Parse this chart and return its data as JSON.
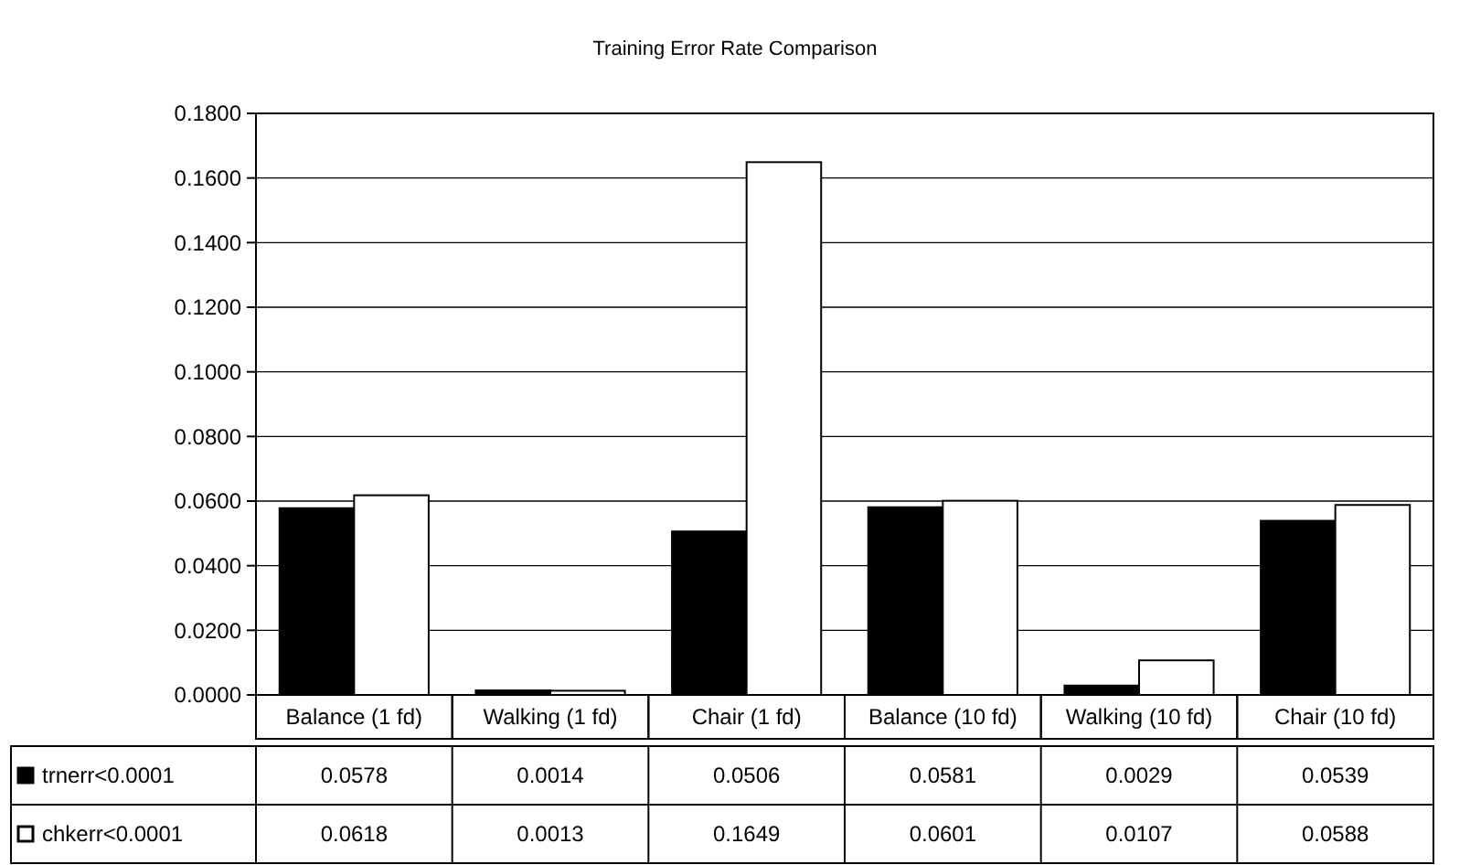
{
  "chart_data": {
    "type": "bar",
    "title": "Training Error Rate Comparison",
    "categories": [
      "Balance (1 fd)",
      "Walking (1 fd)",
      "Chair (1 fd)",
      "Balance (10 fd)",
      "Walking (10 fd)",
      "Chair (10 fd)"
    ],
    "series": [
      {
        "name": "trnerr<0.0001",
        "color": "#000000",
        "values": [
          0.0578,
          0.0014,
          0.0506,
          0.0581,
          0.0029,
          0.0539
        ]
      },
      {
        "name": "chkerr<0.0001",
        "color": "#ffffff",
        "values": [
          0.0618,
          0.0013,
          0.1649,
          0.0601,
          0.0107,
          0.0588
        ]
      }
    ],
    "ylim": [
      0,
      0.18
    ],
    "yticks": [
      {
        "value": 0,
        "label": "0.0000"
      },
      {
        "value": 0.02,
        "label": "0.0200"
      },
      {
        "value": 0.04,
        "label": "0.0400"
      },
      {
        "value": 0.06,
        "label": "0.0600"
      },
      {
        "value": 0.08,
        "label": "0.0800"
      },
      {
        "value": 0.1,
        "label": "0.1000"
      },
      {
        "value": 0.12,
        "label": "0.1200"
      },
      {
        "value": 0.14,
        "label": "0.1400"
      },
      {
        "value": 0.16,
        "label": "0.1600"
      },
      {
        "value": 0.18,
        "label": "0.1800"
      }
    ],
    "grid": "y",
    "legend": "bottom left",
    "data_labels": true
  }
}
